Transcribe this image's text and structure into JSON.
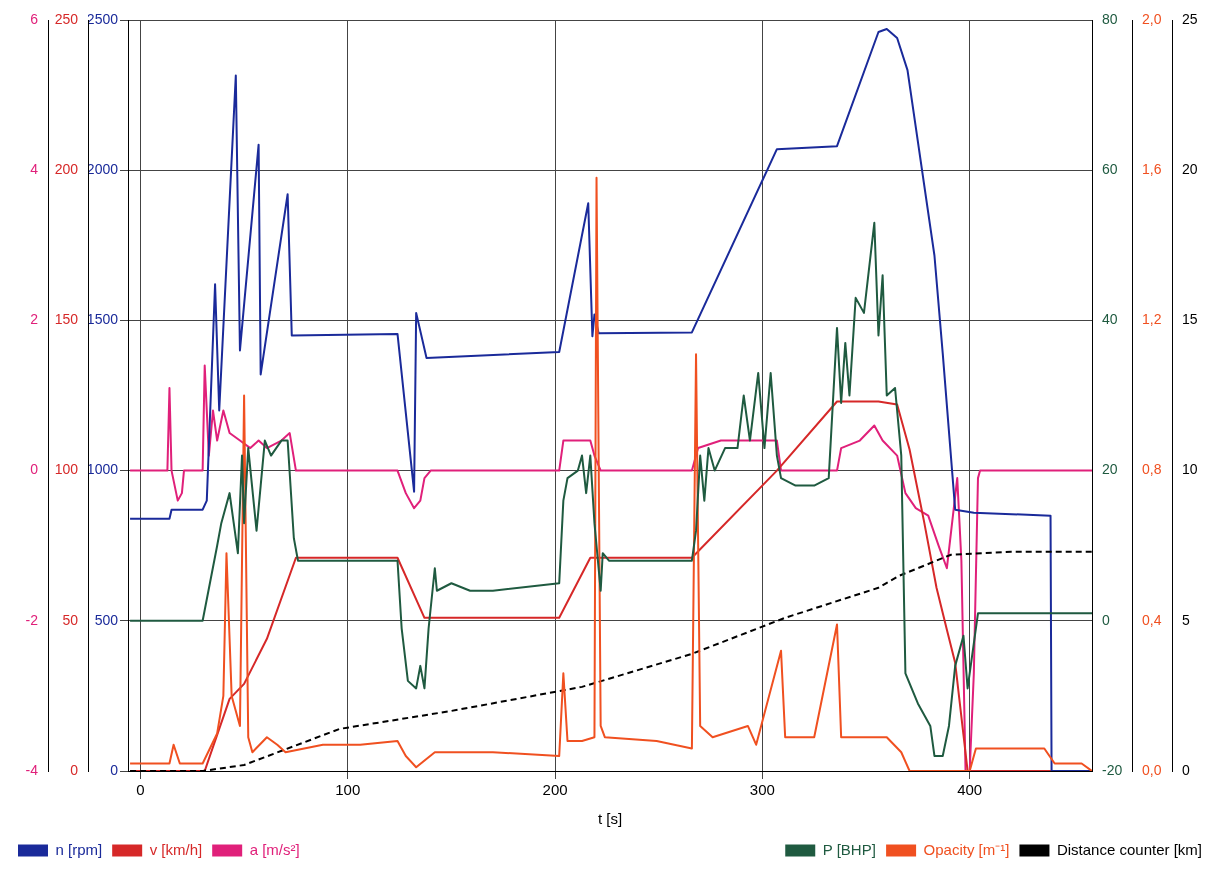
{
  "chart_data": [
    {
      "type": "line",
      "xlabel": "t [s]",
      "xlim": [
        -6,
        459
      ],
      "xticks": [
        0,
        100,
        200,
        300,
        400
      ],
      "ylim": [
        0,
        2500
      ],
      "yticks": [
        0,
        500,
        1000,
        1500,
        2000,
        2500
      ],
      "y2lim": [
        0,
        250
      ],
      "y2ticks": [
        0,
        50,
        100,
        150,
        200,
        250
      ],
      "y3lim": [
        -4,
        6
      ],
      "y3ticks": [
        -4,
        -2,
        0,
        2,
        4,
        6
      ],
      "grid": true,
      "legend": "bottom",
      "marker": "none",
      "series": [
        {
          "name": "n [rpm]",
          "color": "#1a2a9a",
          "x": [
            -5,
            14,
            15,
            30,
            32,
            36,
            38,
            46,
            48,
            57,
            58,
            71,
            73,
            124,
            132,
            133,
            138,
            202,
            216,
            218,
            219,
            221,
            266,
            307,
            336,
            356,
            360,
            365,
            370,
            383,
            387,
            393,
            402,
            439,
            439.5,
            459
          ],
          "values": [
            840,
            840,
            870,
            870,
            900,
            1620,
            1200,
            2315,
            1400,
            2085,
            1320,
            1920,
            1450,
            1455,
            930,
            1525,
            1375,
            1395,
            1890,
            1447,
            1520,
            1457,
            1460,
            2070,
            2080,
            2460,
            2470,
            2440,
            2333,
            1716,
            1390,
            870,
            860,
            850,
            0,
            0
          ]
        },
        {
          "name": "v [km/h]",
          "color": "#d62828",
          "axis": "y2",
          "x": [
            -5,
            31,
            43,
            50,
            61,
            75,
            124,
            137,
            202,
            217,
            266,
            307,
            336,
            356,
            365,
            371,
            378,
            384,
            389,
            393,
            397,
            399,
            459
          ],
          "values": [
            0,
            0,
            24,
            29,
            44,
            71,
            71,
            51,
            51,
            71,
            71,
            100,
            123,
            123,
            122,
            107,
            83,
            61,
            47,
            36,
            12,
            0,
            0
          ]
        },
        {
          "name": "a [m/s²]",
          "color": "#e0207a",
          "axis": "y3",
          "x": [
            -5,
            13,
            14,
            15,
            18,
            20,
            21,
            30,
            31,
            33,
            35,
            37,
            40,
            43,
            48,
            53,
            57,
            61,
            68,
            72,
            75,
            124,
            128,
            132,
            135,
            137,
            140,
            202,
            204,
            211,
            217,
            219,
            222,
            266,
            269,
            280,
            307,
            309,
            336,
            338,
            347,
            354,
            358,
            365,
            369,
            374,
            380,
            385,
            389,
            394,
            396,
            398,
            400,
            402,
            404,
            405,
            459
          ],
          "values": [
            0,
            0,
            1.1,
            0,
            -0.4,
            -0.3,
            0,
            0,
            1.4,
            0.2,
            0.8,
            0.4,
            0.8,
            0.5,
            0.4,
            0.3,
            0.4,
            0.3,
            0.4,
            0.5,
            0,
            0,
            -0.3,
            -0.5,
            -0.4,
            -0.1,
            0,
            0,
            0.4,
            0.4,
            0.4,
            0.2,
            0,
            0,
            0.3,
            0.4,
            0.4,
            0,
            0,
            0.3,
            0.4,
            0.6,
            0.4,
            0.2,
            -0.3,
            -0.5,
            -0.6,
            -1,
            -1.3,
            -0.1,
            -1.2,
            -4,
            -4,
            -2.7,
            -0.1,
            0,
            0
          ]
        }
      ]
    },
    {
      "type": "line",
      "xlim": [
        -6,
        459
      ],
      "tick_labels": "y",
      "ylim": [
        -20,
        80
      ],
      "yticks": [
        -20,
        0,
        20,
        40,
        60,
        80
      ],
      "y2lim": [
        0,
        2
      ],
      "y2ticks": [
        {
          "value": 0,
          "label": "0,0"
        },
        {
          "value": 0.4,
          "label": "0,4"
        },
        {
          "value": 0.8,
          "label": "0,8"
        },
        {
          "value": 1.2,
          "label": "1,2"
        },
        {
          "value": 1.6,
          "label": "1,6"
        },
        {
          "value": 2,
          "label": "2,0"
        }
      ],
      "y3lim": [
        0,
        25
      ],
      "y3ticks": [
        0,
        5,
        10,
        15,
        20,
        25
      ],
      "legend": "bottom",
      "marker": "none",
      "series": [
        {
          "name": "P [BHP]",
          "color": "#1f5a40",
          "x": [
            -5,
            30,
            37,
            39,
            43,
            45,
            47,
            49,
            50,
            52,
            56,
            58,
            60,
            63,
            68,
            71,
            74,
            76,
            81,
            124,
            126,
            129,
            133,
            135,
            137,
            139,
            142,
            143,
            150,
            159,
            170,
            202,
            204,
            206,
            211,
            213,
            215,
            217,
            219,
            222,
            223,
            226,
            266,
            268,
            270,
            272,
            274,
            277,
            282,
            288,
            291,
            294,
            298,
            301,
            304,
            307,
            309,
            316,
            325,
            332,
            336,
            338,
            340,
            342,
            345,
            349,
            354,
            356,
            358,
            360,
            364,
            367,
            369,
            375,
            381,
            383,
            387,
            390,
            393,
            397,
            399,
            404,
            459
          ],
          "values": [
            0,
            0,
            10,
            13,
            17,
            13,
            9,
            22,
            13,
            23,
            12,
            18,
            24,
            22,
            24,
            24,
            11,
            8,
            8,
            8,
            -1,
            -8,
            -9,
            -6,
            -9,
            -1,
            7,
            4,
            5,
            4,
            4,
            5,
            16,
            19,
            20,
            22,
            17,
            22,
            13,
            4,
            9,
            8,
            8,
            12,
            22,
            16,
            23,
            20,
            23,
            23,
            30,
            24,
            33,
            23,
            33,
            22,
            19,
            18,
            18,
            19,
            39,
            29,
            37,
            30,
            43,
            41,
            53,
            38,
            46,
            30,
            31,
            22,
            -7,
            -11,
            -14,
            -18,
            -18,
            -14,
            -6,
            -2,
            -9,
            1,
            1
          ]
        },
        {
          "name": "Opacity [m⁻¹]",
          "color": "#f05020",
          "axis": "y2",
          "x": [
            -5,
            14,
            16,
            19,
            30,
            37,
            40,
            41.5,
            44,
            48,
            50,
            52,
            54,
            61,
            66,
            70,
            88,
            106,
            124,
            128,
            133,
            142,
            170,
            202,
            204,
            206,
            213,
            219,
            220,
            222,
            224,
            249,
            266,
            268,
            270,
            276,
            293,
            297,
            309,
            311,
            325,
            336,
            338,
            347,
            360,
            367,
            371,
            400,
            403,
            436,
            441,
            454,
            459
          ],
          "values": [
            0.02,
            0.02,
            0.07,
            0.02,
            0.02,
            0.1,
            0.2,
            0.58,
            0.2,
            0.12,
            1.0,
            0.09,
            0.05,
            0.09,
            0.07,
            0.05,
            0.07,
            0.07,
            0.08,
            0.04,
            0.01,
            0.05,
            0.05,
            0.04,
            0.26,
            0.08,
            0.08,
            0.09,
            1.58,
            0.12,
            0.09,
            0.08,
            0.06,
            1.11,
            0.12,
            0.09,
            0.12,
            0.07,
            0.32,
            0.09,
            0.09,
            0.39,
            0.09,
            0.09,
            0.09,
            0.05,
            0,
            0,
            0.06,
            0.06,
            0.02,
            0.02,
            0
          ]
        },
        {
          "name": "Distance counter [km]",
          "color": "#000000",
          "axis": "y3",
          "line_style": "dashed",
          "x": [
            -5,
            30,
            50,
            96,
            150,
            213,
            266,
            311,
            356,
            366,
            391,
            420,
            459
          ],
          "values": [
            0,
            0,
            0.2,
            1.4,
            2.0,
            2.8,
            3.9,
            5.1,
            6.1,
            6.5,
            7.2,
            7.3,
            7.3
          ]
        }
      ]
    }
  ]
}
